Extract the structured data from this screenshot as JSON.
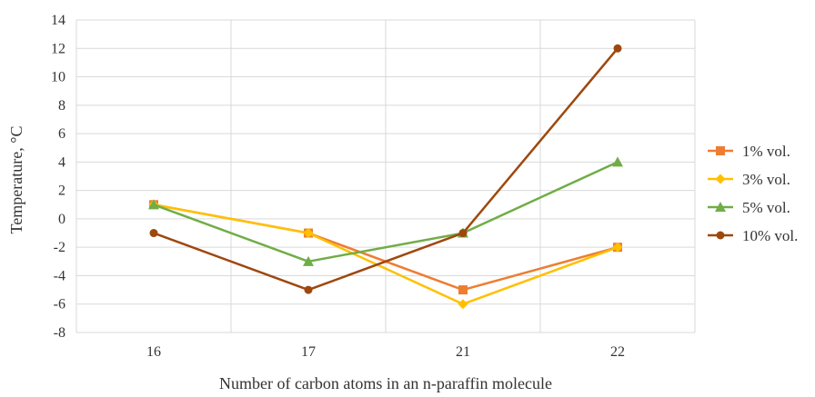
{
  "chart_data": {
    "type": "line",
    "title": "",
    "xlabel": "Number of carbon atoms in an n-paraffin molecule",
    "ylabel": "Temperature, °C",
    "categories": [
      "16",
      "17",
      "21",
      "22"
    ],
    "ylim": [
      -8,
      14
    ],
    "yticks": [
      -8,
      -6,
      -4,
      -2,
      0,
      2,
      4,
      6,
      8,
      10,
      12,
      14
    ],
    "grid": true,
    "legend_position": "right",
    "series": [
      {
        "name": "1% vol.",
        "values": [
          1,
          -1,
          -5,
          -2
        ],
        "color": "#ED7D31",
        "marker": "square"
      },
      {
        "name": "3% vol.",
        "values": [
          1,
          -1,
          -6,
          -2
        ],
        "color": "#FFC000",
        "marker": "diamond"
      },
      {
        "name": "5% vol.",
        "values": [
          1,
          -3,
          -1,
          4
        ],
        "color": "#70AD47",
        "marker": "triangle"
      },
      {
        "name": "10% vol.",
        "values": [
          -1,
          -5,
          -1,
          12
        ],
        "color": "#9E480E",
        "marker": "circle"
      }
    ]
  }
}
